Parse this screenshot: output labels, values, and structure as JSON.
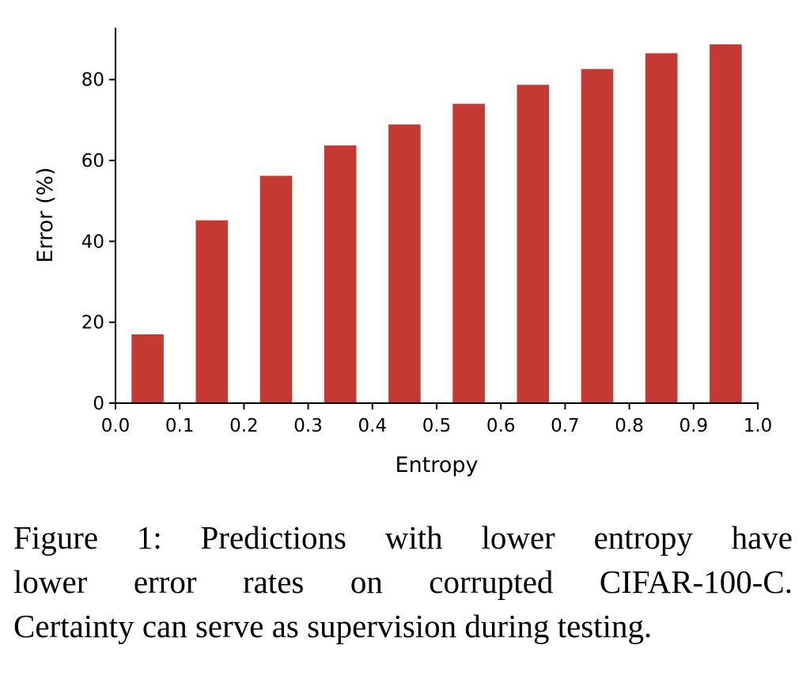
{
  "chart_data": {
    "type": "bar",
    "title": "",
    "xlabel": "Entropy",
    "ylabel": "Error (%)",
    "x": [
      0.05,
      0.15,
      0.25,
      0.35,
      0.45,
      0.55,
      0.65,
      0.75,
      0.85,
      0.95
    ],
    "bar_width": 0.05,
    "values": [
      17.0,
      45.2,
      56.2,
      63.7,
      68.9,
      74.0,
      78.7,
      82.6,
      86.5,
      88.7
    ],
    "xlim": [
      0.0,
      1.0
    ],
    "ylim": [
      0,
      92
    ],
    "xticks": [
      "0.0",
      "0.1",
      "0.2",
      "0.3",
      "0.4",
      "0.5",
      "0.6",
      "0.7",
      "0.8",
      "0.9",
      "1.0"
    ],
    "yticks": [
      "0",
      "20",
      "40",
      "60",
      "80"
    ],
    "grid": false,
    "color": "#c43a33"
  },
  "caption": {
    "lines": [
      "Figure 1: Predictions with lower entropy have",
      "lower error rates on corrupted CIFAR-100-C.",
      "Certainty can serve as supervision during testing."
    ]
  }
}
